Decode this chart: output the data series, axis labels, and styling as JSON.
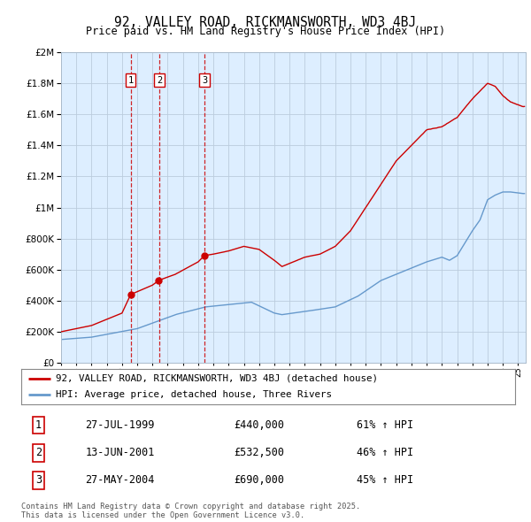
{
  "title": "92, VALLEY ROAD, RICKMANSWORTH, WD3 4BJ",
  "subtitle": "Price paid vs. HM Land Registry's House Price Index (HPI)",
  "legend_line1": "92, VALLEY ROAD, RICKMANSWORTH, WD3 4BJ (detached house)",
  "legend_line2": "HPI: Average price, detached house, Three Rivers",
  "footer": "Contains HM Land Registry data © Crown copyright and database right 2025.\nThis data is licensed under the Open Government Licence v3.0.",
  "transactions": [
    {
      "num": 1,
      "date": "27-JUL-1999",
      "price": "£440,000",
      "hpi": "61% ↑ HPI",
      "year": 1999.57
    },
    {
      "num": 2,
      "date": "13-JUN-2001",
      "price": "£532,500",
      "hpi": "46% ↑ HPI",
      "year": 2001.45
    },
    {
      "num": 3,
      "date": "27-MAY-2004",
      "price": "£690,000",
      "hpi": "45% ↑ HPI",
      "year": 2004.41
    }
  ],
  "red_color": "#cc0000",
  "blue_color": "#6699cc",
  "vline_color": "#cc0000",
  "grid_color": "#bbccdd",
  "chart_bg": "#ddeeff",
  "background_color": "#ffffff",
  "ylim": [
    0,
    2000000
  ],
  "xlim_start": 1995,
  "xlim_end": 2025.5,
  "fig_width": 6.0,
  "fig_height": 5.9
}
